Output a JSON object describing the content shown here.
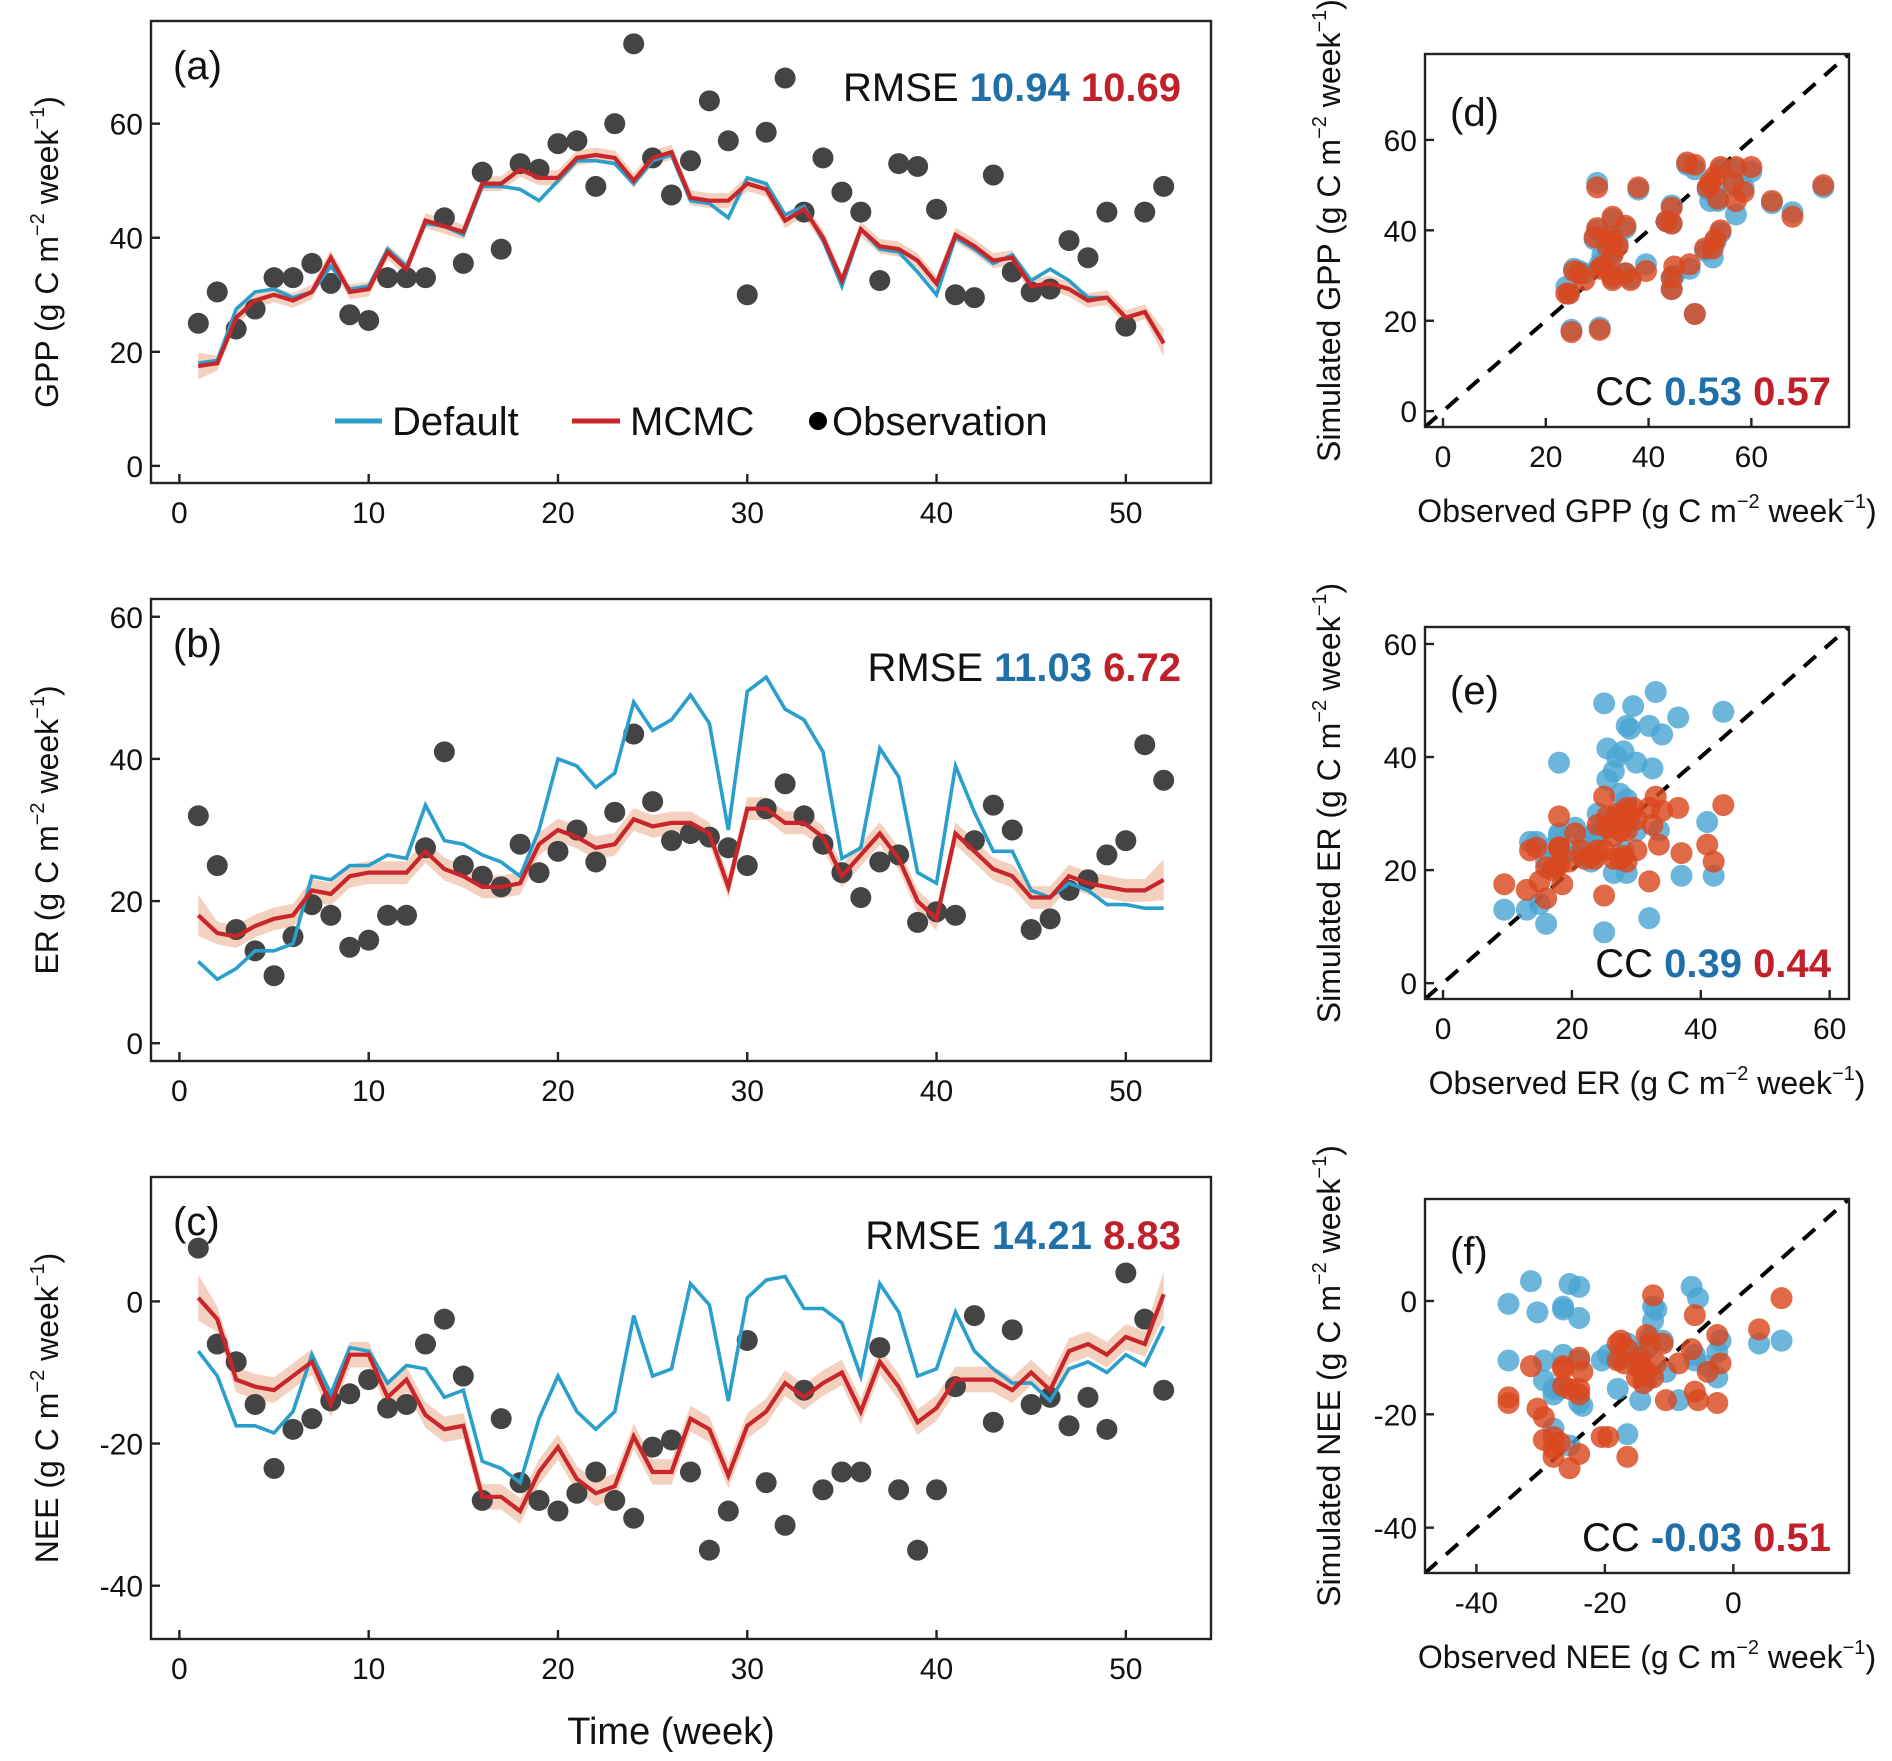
{
  "colors": {
    "default": "#2a9fcb",
    "mcmc": "#c8262a",
    "mcmc_band": "#f0c0a8",
    "observation": "#444444",
    "scatter_default": "#4aa6d2",
    "scatter_mcmc": "#d9481e",
    "metric_default": "#1f6fa8",
    "metric_mcmc": "#c0202a"
  },
  "legend": {
    "default": "Default",
    "mcmc": "MCMC",
    "observation": "Observation"
  },
  "chart_data": [
    {
      "id": "a",
      "type": "line",
      "panel_label": "(a)",
      "title": "",
      "xlabel": "",
      "ylabel": "GPP (g C m",
      "ylabel_sup1": "−2",
      "ylabel_mid": " week",
      "ylabel_sup2": "−1",
      "ylabel_end": ")",
      "xlim": [
        -1.5,
        54.5
      ],
      "ylim": [
        -3,
        78
      ],
      "xticks": [
        0,
        10,
        20,
        30,
        40,
        50
      ],
      "yticks": [
        0,
        20,
        40,
        60
      ],
      "legend_position": "bottom-center",
      "metric": {
        "name": "RMSE",
        "default": "10.94",
        "mcmc": "10.69"
      },
      "x": [
        1,
        2,
        3,
        4,
        5,
        6,
        7,
        8,
        9,
        10,
        11,
        12,
        13,
        14,
        15,
        16,
        17,
        18,
        19,
        20,
        21,
        22,
        23,
        24,
        25,
        26,
        27,
        28,
        29,
        30,
        31,
        32,
        33,
        34,
        35,
        36,
        37,
        38,
        39,
        40,
        41,
        42,
        43,
        44,
        45,
        46,
        47,
        48,
        49,
        50,
        51,
        52
      ],
      "series": [
        {
          "name": "Default",
          "kind": "line",
          "values": [
            18,
            18.5,
            27.5,
            30.5,
            31,
            29.5,
            30.5,
            35,
            31,
            31.5,
            38,
            35,
            42.5,
            42,
            40.5,
            49,
            49,
            48.5,
            46.5,
            50,
            53.5,
            53.5,
            53,
            49.5,
            53.5,
            54.5,
            46.5,
            46,
            43.5,
            50.5,
            49.5,
            44,
            45.5,
            39.5,
            31.5,
            41.5,
            38,
            37.5,
            34,
            30,
            40,
            38,
            35.5,
            37,
            32.5,
            34.5,
            32.5,
            29.5,
            29.5,
            26,
            27,
            21.5
          ]
        },
        {
          "name": "MCMC",
          "kind": "line",
          "band_halfwidth": 1.3,
          "values": [
            17.5,
            18,
            26,
            29,
            30,
            29,
            30.5,
            36.5,
            30.5,
            31,
            37.5,
            34.5,
            43,
            42,
            41,
            49.5,
            49.5,
            52,
            50.5,
            50.5,
            54,
            54.5,
            54,
            50,
            54,
            55,
            47,
            46.5,
            46.5,
            49.5,
            48.5,
            43,
            45,
            40,
            32.5,
            41.5,
            38.5,
            38,
            36,
            32,
            40.5,
            38.5,
            36,
            36.5,
            31.5,
            32,
            31,
            29,
            29.5,
            26,
            27,
            21.5
          ]
        },
        {
          "name": "Observation",
          "kind": "scatter",
          "values": [
            25,
            30.5,
            24,
            27.5,
            33,
            33,
            35.5,
            32,
            26.5,
            25.5,
            33,
            33,
            33,
            43.5,
            35.5,
            51.5,
            38,
            53,
            52,
            56.5,
            57,
            49,
            60,
            74,
            54,
            47.5,
            53.5,
            64,
            57,
            30,
            58.5,
            68,
            44.5,
            54,
            48,
            44.5,
            32.5,
            53,
            52.5,
            45,
            30,
            29.5,
            51,
            34,
            30.5,
            31,
            39.5,
            36.5,
            44.5,
            24.5,
            44.5,
            49
          ]
        }
      ]
    },
    {
      "id": "b",
      "type": "line",
      "panel_label": "(b)",
      "title": "",
      "xlabel": "",
      "ylabel": "ER (g C m",
      "ylabel_sup1": "−2",
      "ylabel_mid": " week",
      "ylabel_sup2": "−1",
      "ylabel_end": ")",
      "xlim": [
        -1.5,
        54.5
      ],
      "ylim": [
        -2.5,
        62.5
      ],
      "xticks": [
        0,
        10,
        20,
        30,
        40,
        50
      ],
      "yticks": [
        0,
        20,
        40,
        60
      ],
      "metric": {
        "name": "RMSE",
        "default": "11.03",
        "mcmc": "6.72"
      },
      "x": [
        1,
        2,
        3,
        4,
        5,
        6,
        7,
        8,
        9,
        10,
        11,
        12,
        13,
        14,
        15,
        16,
        17,
        18,
        19,
        20,
        21,
        22,
        23,
        24,
        25,
        26,
        27,
        28,
        29,
        30,
        31,
        32,
        33,
        34,
        35,
        36,
        37,
        38,
        39,
        40,
        41,
        42,
        43,
        44,
        45,
        46,
        47,
        48,
        49,
        50,
        51,
        52
      ],
      "series": [
        {
          "name": "Default",
          "kind": "line",
          "values": [
            11.5,
            9,
            10.5,
            13,
            13,
            14,
            23.5,
            23,
            25,
            25,
            26.5,
            26,
            33.5,
            28.5,
            28,
            26.5,
            25.5,
            23.5,
            30,
            40,
            39,
            36,
            38,
            48,
            44,
            45.5,
            49,
            45,
            30,
            49.5,
            51.5,
            47,
            45.5,
            41,
            26,
            27.5,
            41.5,
            37.5,
            24,
            22.5,
            39,
            32.5,
            27,
            27,
            21.5,
            20.5,
            22.5,
            21.5,
            19.5,
            19.5,
            19,
            19
          ]
        },
        {
          "name": "MCMC",
          "kind": "line",
          "band_halfwidth": 1.6,
          "values": [
            18,
            15.5,
            15,
            16.5,
            17.5,
            18,
            21.5,
            21,
            23.5,
            24,
            24,
            24,
            27,
            24.5,
            23.5,
            22,
            22,
            22.5,
            28,
            30,
            29,
            27.5,
            28,
            31.5,
            30.5,
            31,
            31,
            29.5,
            22,
            33,
            33,
            31,
            31,
            29,
            23.5,
            26.5,
            29.5,
            26,
            20,
            17.5,
            29.5,
            27,
            24.5,
            23.5,
            20.5,
            20.5,
            23.5,
            22.5,
            22,
            21.5,
            21.5,
            23
          ]
        },
        {
          "name": "Observation",
          "kind": "scatter",
          "values": [
            32,
            25,
            16,
            13,
            9.5,
            15,
            19.5,
            18,
            13.5,
            14.5,
            18,
            18,
            27.5,
            41,
            25,
            23.5,
            22,
            28,
            24,
            27,
            30,
            25.5,
            32.5,
            43.5,
            34,
            28.5,
            29.5,
            29,
            27.5,
            25,
            33,
            36.5,
            32,
            28,
            24,
            20.5,
            25.5,
            26.5,
            17,
            18.5,
            18,
            28.5,
            33.5,
            30,
            16,
            17.5,
            21.5,
            23,
            26.5,
            28.5,
            42,
            37
          ]
        }
      ]
    },
    {
      "id": "c",
      "type": "line",
      "panel_label": "(c)",
      "title": "",
      "xlabel": "Time (week)",
      "ylabel": "NEE (g C m",
      "ylabel_sup1": "−2",
      "ylabel_mid": " week",
      "ylabel_sup2": "−1",
      "ylabel_end": ")",
      "xlim": [
        -1.5,
        54.5
      ],
      "ylim": [
        -47.5,
        17.5
      ],
      "xticks": [
        0,
        10,
        20,
        30,
        40,
        50
      ],
      "yticks": [
        -40,
        -20,
        0
      ],
      "metric": {
        "name": "RMSE",
        "default": "14.21",
        "mcmc": "8.83"
      },
      "x": [
        1,
        2,
        3,
        4,
        5,
        6,
        7,
        8,
        9,
        10,
        11,
        12,
        13,
        14,
        15,
        16,
        17,
        18,
        19,
        20,
        21,
        22,
        23,
        24,
        25,
        26,
        27,
        28,
        29,
        30,
        31,
        32,
        33,
        34,
        35,
        36,
        37,
        38,
        39,
        40,
        41,
        42,
        43,
        44,
        45,
        46,
        47,
        48,
        49,
        50,
        51,
        52
      ],
      "series": [
        {
          "name": "Default",
          "kind": "line",
          "values": [
            -7,
            -10.5,
            -17.5,
            -17.5,
            -18.5,
            -15.5,
            -7.5,
            -13,
            -6.5,
            -7,
            -11.5,
            -9,
            -9.5,
            -13.5,
            -12.5,
            -22.5,
            -23.5,
            -25.5,
            -16.5,
            -10.5,
            -15.5,
            -18,
            -15.5,
            -2,
            -10.5,
            -9.5,
            2.5,
            -0.5,
            -14,
            0.5,
            3,
            3.5,
            -1,
            -1,
            -3,
            -10.5,
            2.5,
            -1.5,
            -10.5,
            -9.5,
            -1.5,
            -7,
            -9.5,
            -11.5,
            -11.5,
            -14,
            -9.5,
            -8.5,
            -10,
            -7.5,
            -9,
            -3.5
          ]
        },
        {
          "name": "MCMC",
          "kind": "line",
          "band_halfwidth": 1.8,
          "values": [
            0.5,
            -2.5,
            -11,
            -12,
            -12.5,
            -10.5,
            -8.5,
            -14.5,
            -7.5,
            -7.5,
            -13.5,
            -11,
            -16,
            -18,
            -17.5,
            -27.5,
            -27.5,
            -29.5,
            -24,
            -20.5,
            -25,
            -27,
            -26,
            -19,
            -24,
            -24,
            -16.5,
            -18,
            -24.5,
            -17.5,
            -15.5,
            -11.5,
            -13.5,
            -11.5,
            -10,
            -15.5,
            -8.5,
            -12,
            -17,
            -15,
            -11,
            -11,
            -11,
            -12.5,
            -10,
            -12.5,
            -7,
            -6,
            -7.5,
            -5,
            -6,
            1
          ]
        },
        {
          "name": "Observation",
          "kind": "scatter",
          "values": [
            7.5,
            -6,
            -8.5,
            -14.5,
            -23.5,
            -18,
            -16.5,
            -14,
            -13,
            -11,
            -15,
            -14.5,
            -6,
            -2.5,
            -10.5,
            -28,
            -16.5,
            -25.5,
            -28,
            -29.5,
            -27,
            -24,
            -28,
            -30.5,
            -20.5,
            -19.5,
            -24,
            -35,
            -29.5,
            -5.5,
            -25.5,
            -31.5,
            -12.5,
            -26.5,
            -24,
            -24,
            -6.5,
            -26.5,
            -35,
            -26.5,
            -12,
            -2,
            -17,
            -4,
            -14.5,
            -13.5,
            -17.5,
            -13.5,
            -18,
            4,
            -2.5,
            -12.5
          ]
        }
      ]
    },
    {
      "id": "d",
      "type": "scatter",
      "panel_label": "(d)",
      "source_panel": "a",
      "xlabel": "Observed GPP (g C m",
      "ylabel": "Simulated GPP (g C m",
      "label_sup1": "−2",
      "label_mid": " week",
      "label_sup2": "−1",
      "label_end": ")",
      "xlim": [
        -3.5,
        79
      ],
      "ylim": [
        -3.5,
        79
      ],
      "xticks": [
        0,
        20,
        40,
        60
      ],
      "yticks": [
        0,
        20,
        40,
        60
      ],
      "reference_line": "1:1 dashed",
      "metric": {
        "name": "CC",
        "default": "0.53",
        "mcmc": "0.57"
      }
    },
    {
      "id": "e",
      "type": "scatter",
      "panel_label": "(e)",
      "source_panel": "b",
      "xlabel": "Observed ER (g C m",
      "ylabel": "Simulated ER (g C m",
      "label_sup1": "−2",
      "label_mid": " week",
      "label_sup2": "−1",
      "label_end": ")",
      "xlim": [
        -2.8,
        63
      ],
      "ylim": [
        -2.8,
        63
      ],
      "xticks": [
        0,
        20,
        40,
        60
      ],
      "yticks": [
        0,
        20,
        40,
        60
      ],
      "reference_line": "1:1 dashed",
      "metric": {
        "name": "CC",
        "default": "0.39",
        "mcmc": "0.44"
      }
    },
    {
      "id": "f",
      "type": "scatter",
      "panel_label": "(f)",
      "source_panel": "c",
      "xlabel": "Observed NEE (g C m",
      "ylabel": "Simulated NEE (g C m",
      "label_sup1": "−2",
      "label_mid": " week",
      "label_sup2": "−1",
      "label_end": ")",
      "xlim": [
        -48,
        18
      ],
      "ylim": [
        -48,
        18
      ],
      "xticks": [
        -40,
        -20,
        0
      ],
      "yticks": [
        -40,
        -20,
        0
      ],
      "reference_line": "1:1 dashed",
      "metric": {
        "name": "CC",
        "default": "-0.03",
        "mcmc": "0.51"
      }
    }
  ]
}
